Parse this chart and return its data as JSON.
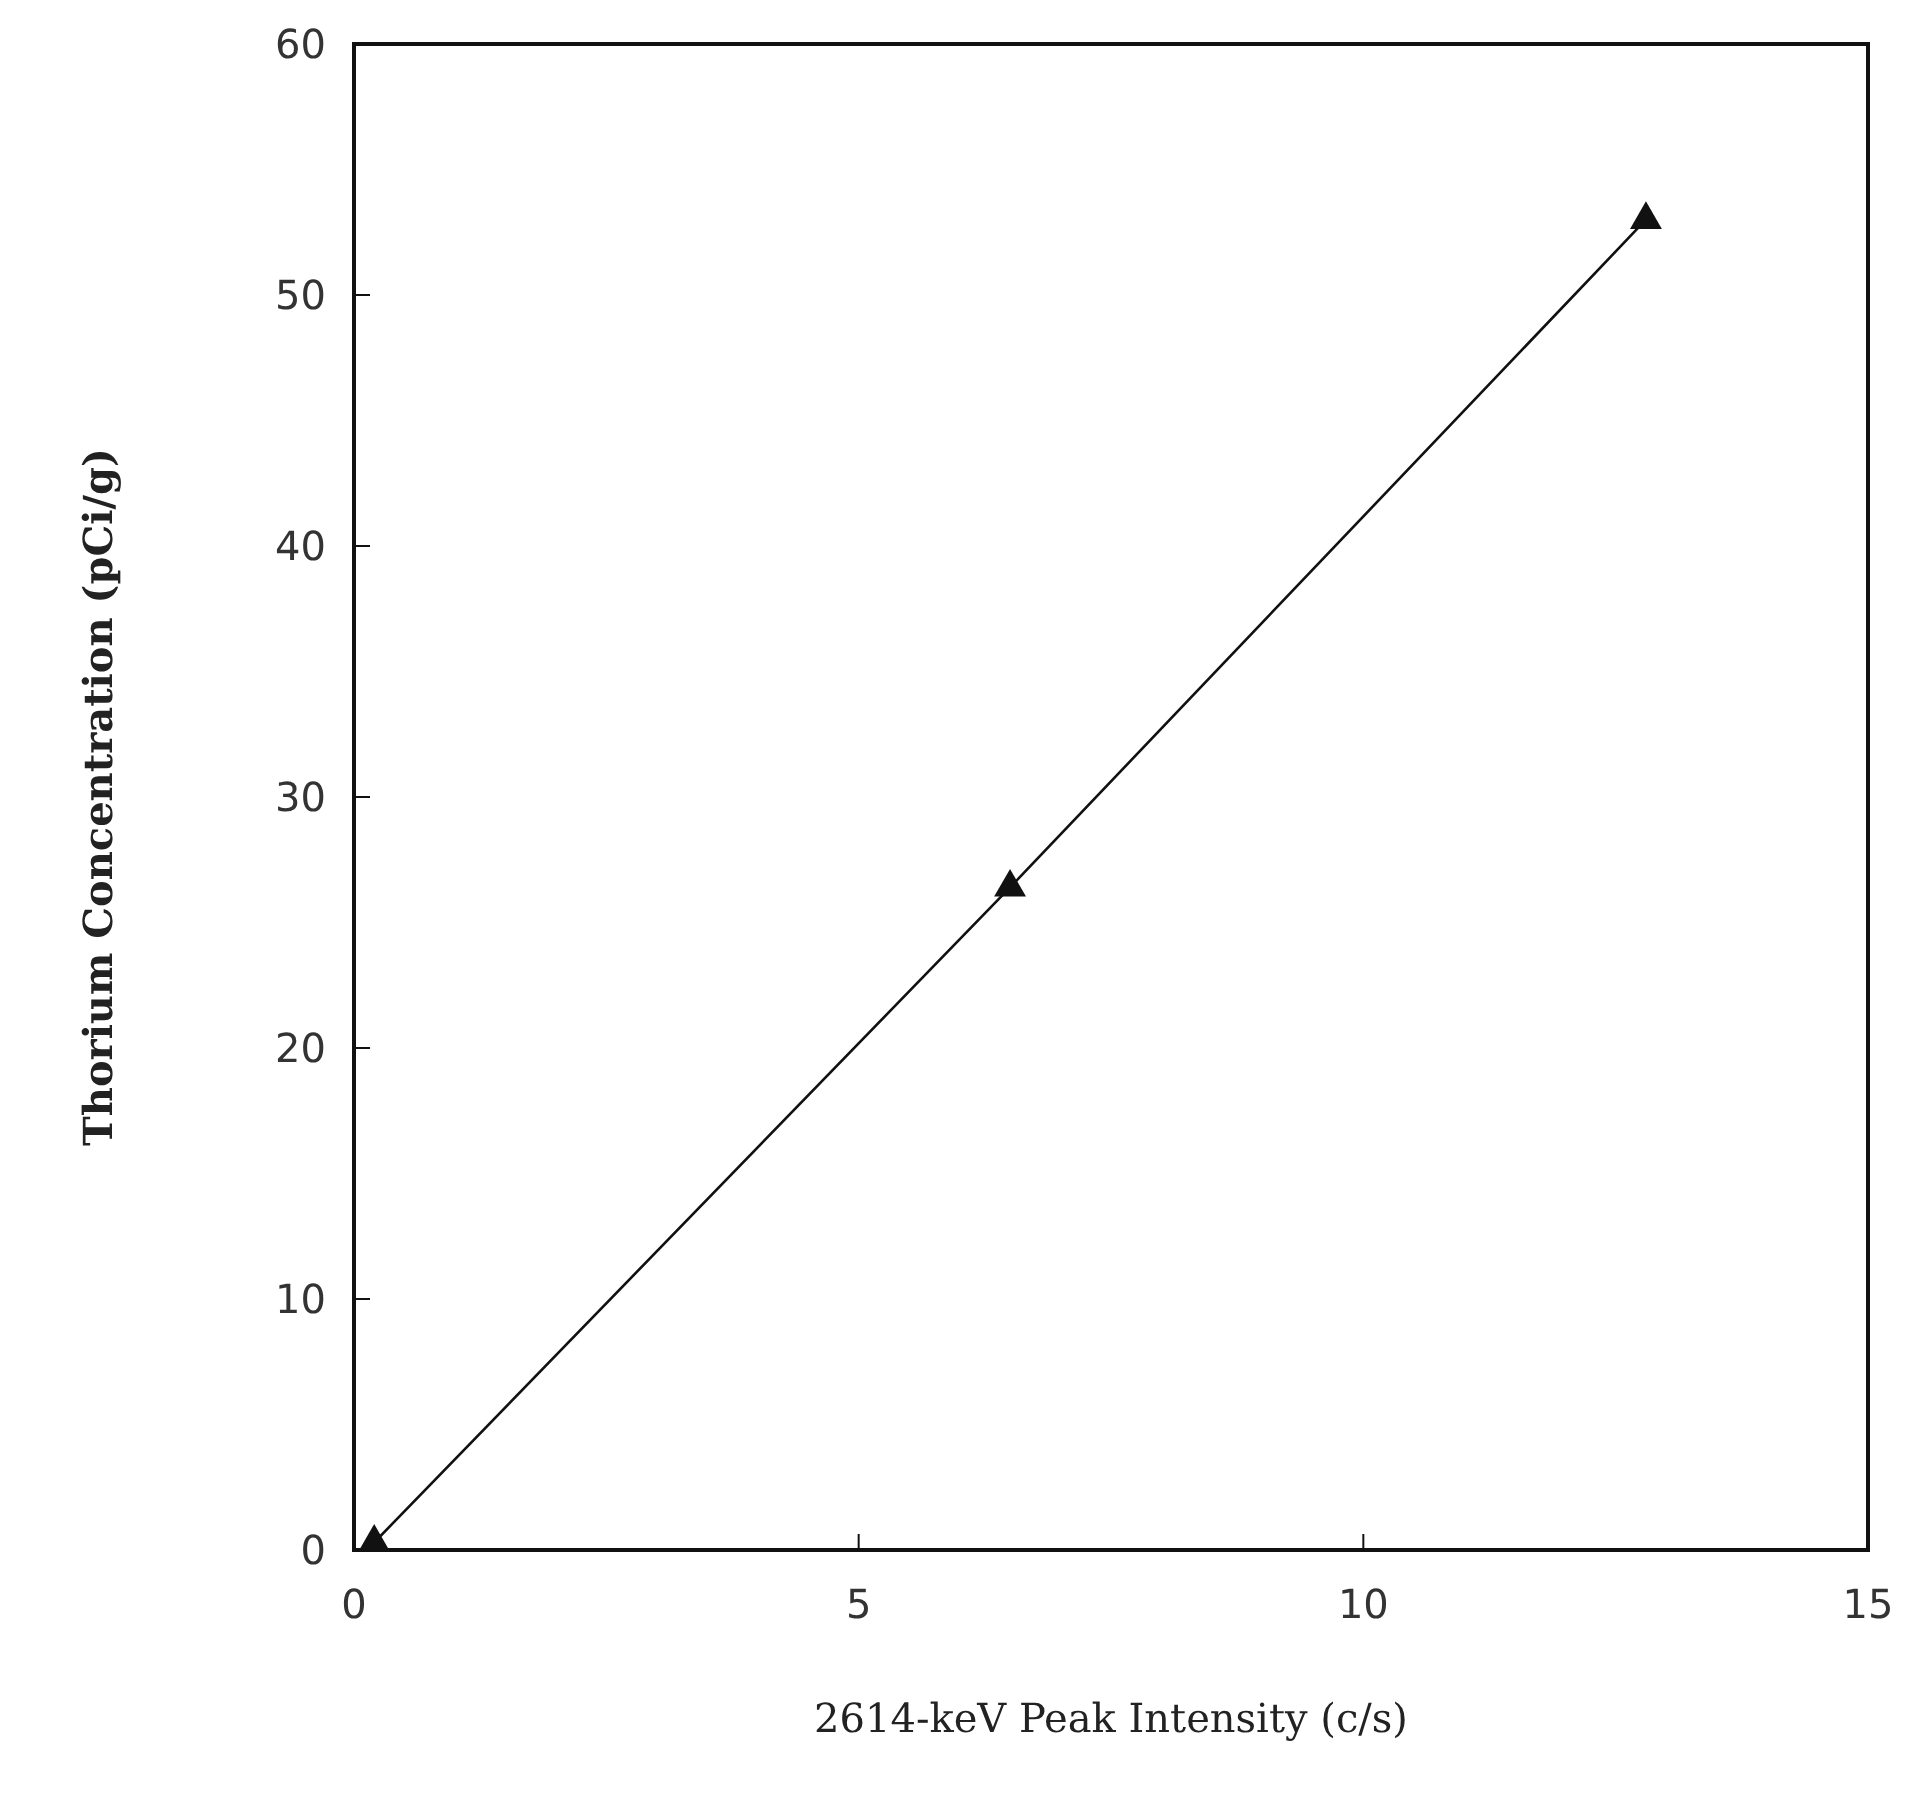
{
  "chart_data": {
    "type": "line",
    "xlabel": "2614-keV Peak Intensity  (c/s)",
    "ylabel": "Thorium Concentration  (pCi/g)",
    "x": [
      0.2,
      6.5,
      12.8
    ],
    "series": [
      {
        "color": "#111111",
        "values": [
          0.3,
          26.4,
          53
        ]
      }
    ],
    "xlim": [
      0,
      15
    ],
    "xticks": [
      0,
      5,
      10,
      15
    ],
    "ylim": [
      0,
      60
    ],
    "yticks": [
      0,
      10,
      20,
      30,
      40,
      50,
      60
    ],
    "marker": "triangle",
    "line_style": "solid",
    "grid": false
  }
}
